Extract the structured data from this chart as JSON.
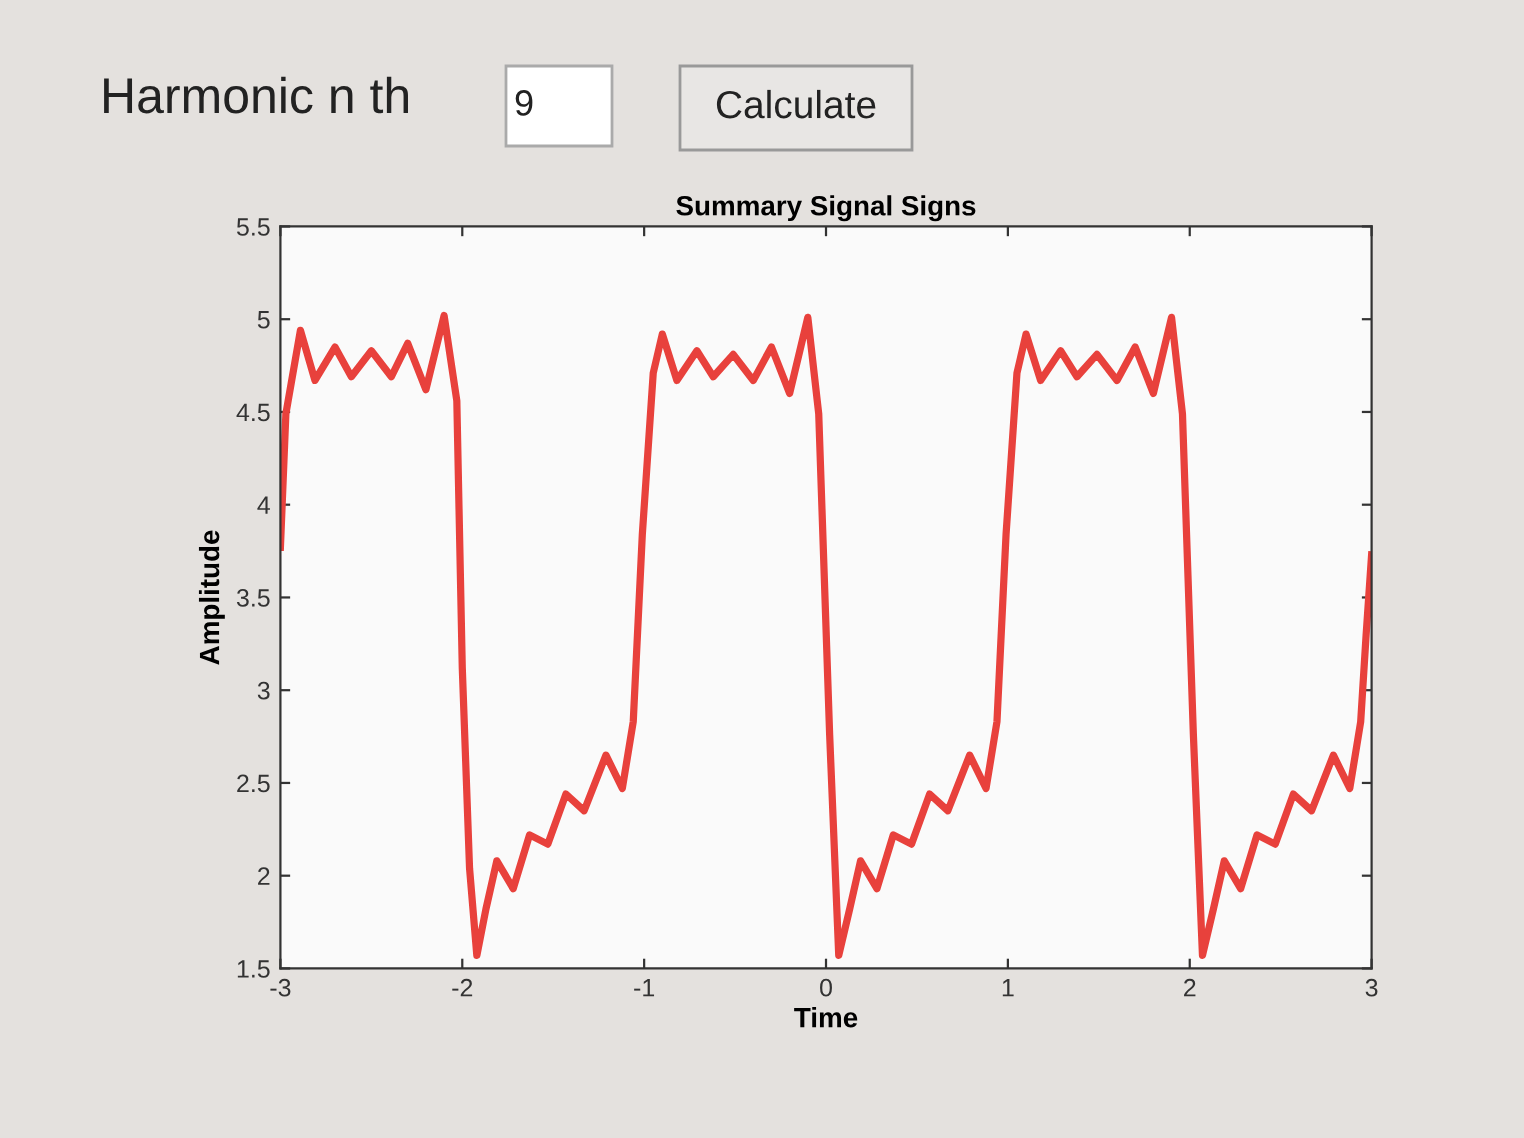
{
  "chart_data": {
    "type": "line",
    "title": "Summary Signal Signs",
    "xlabel": "Time",
    "ylabel": "Amplitude",
    "annotations": [
      "Harmonic n th",
      "9",
      "Calculate"
    ],
    "xlim": [
      -3,
      3
    ],
    "xticks": [
      -3,
      -2,
      -1,
      0,
      1,
      2,
      3
    ],
    "ylim": [
      1.5,
      5.5
    ],
    "yticks": [
      1.5,
      2,
      2.5,
      3,
      3.5,
      4,
      4.5,
      5,
      5.5
    ],
    "grid": false,
    "marker": "none",
    "line_style": "solid",
    "series": [
      {
        "color": "#e8413c",
        "x": [
          -3.0,
          -2.97,
          -2.89,
          -2.81,
          -2.7,
          -2.61,
          -2.5,
          -2.39,
          -2.3,
          -2.2,
          -2.1,
          -2.03,
          -2.0,
          -1.96,
          -1.92,
          -1.87,
          -1.81,
          -1.72,
          -1.63,
          -1.53,
          -1.43,
          -1.33,
          -1.21,
          -1.12,
          -1.06,
          -1.01,
          -0.95,
          -0.9,
          -0.82,
          -0.71,
          -0.62,
          -0.51,
          -0.4,
          -0.3,
          -0.2,
          -0.1,
          -0.04,
          0.02,
          0.07,
          0.13,
          0.19,
          0.28,
          0.37,
          0.47,
          0.57,
          0.67,
          0.79,
          0.88,
          0.94,
          0.99,
          1.05,
          1.1,
          1.18,
          1.29,
          1.38,
          1.49,
          1.6,
          1.7,
          1.8,
          1.9,
          1.96,
          2.02,
          2.07,
          2.13,
          2.19,
          2.28,
          2.37,
          2.47,
          2.57,
          2.67,
          2.79,
          2.88,
          2.94,
          2.97,
          3.0
        ],
        "values": [
          3.77,
          4.49,
          4.94,
          4.67,
          4.85,
          4.69,
          4.83,
          4.69,
          4.87,
          4.62,
          5.02,
          4.56,
          3.12,
          2.04,
          1.57,
          1.82,
          2.08,
          1.93,
          2.22,
          2.17,
          2.44,
          2.35,
          2.65,
          2.47,
          2.83,
          3.84,
          4.71,
          4.92,
          4.67,
          4.83,
          4.69,
          4.81,
          4.67,
          4.85,
          4.6,
          5.01,
          4.49,
          2.76,
          1.57,
          1.82,
          2.08,
          1.93,
          2.22,
          2.17,
          2.44,
          2.35,
          2.65,
          2.47,
          2.83,
          3.84,
          4.71,
          4.92,
          4.67,
          4.83,
          4.69,
          4.81,
          4.67,
          4.85,
          4.6,
          5.01,
          4.49,
          2.76,
          1.57,
          1.82,
          2.08,
          1.93,
          2.22,
          2.17,
          2.44,
          2.35,
          2.65,
          2.47,
          2.83,
          3.3,
          3.73
        ]
      }
    ]
  }
}
